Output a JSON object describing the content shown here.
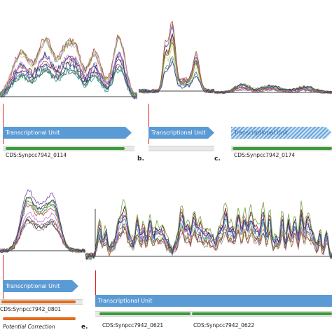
{
  "panels": {
    "a": {
      "arrow_label": "Transcriptional Unit",
      "cds_label": "CDS:Synpcc7942_0114"
    },
    "b": {
      "letter": "b.",
      "arrow_label": "Transcriptional Unit",
      "cds_label": ""
    },
    "c": {
      "letter": "c.",
      "arrow_label": "Transcriptional Unit",
      "cds_label": "CDS:Synpcc7942_0174"
    },
    "d": {
      "arrow_label": "Transcriptional Unit",
      "cds_label": "CDS:Synpcc7942_0801"
    },
    "e": {
      "letter": "e.",
      "arrow_label": "Transcriptional Unit",
      "cds_label_1": "CDS:Synpcc7942_0621",
      "cds_label_2": "CDS:Synpcc7942_0622"
    }
  },
  "legend": {
    "potential_correction": "Potential Correction"
  },
  "colors": {
    "arrow": "#5b9bd5",
    "cds": "#3b9b3b",
    "correction": "#e36a1e",
    "marker": "#e02020"
  }
}
